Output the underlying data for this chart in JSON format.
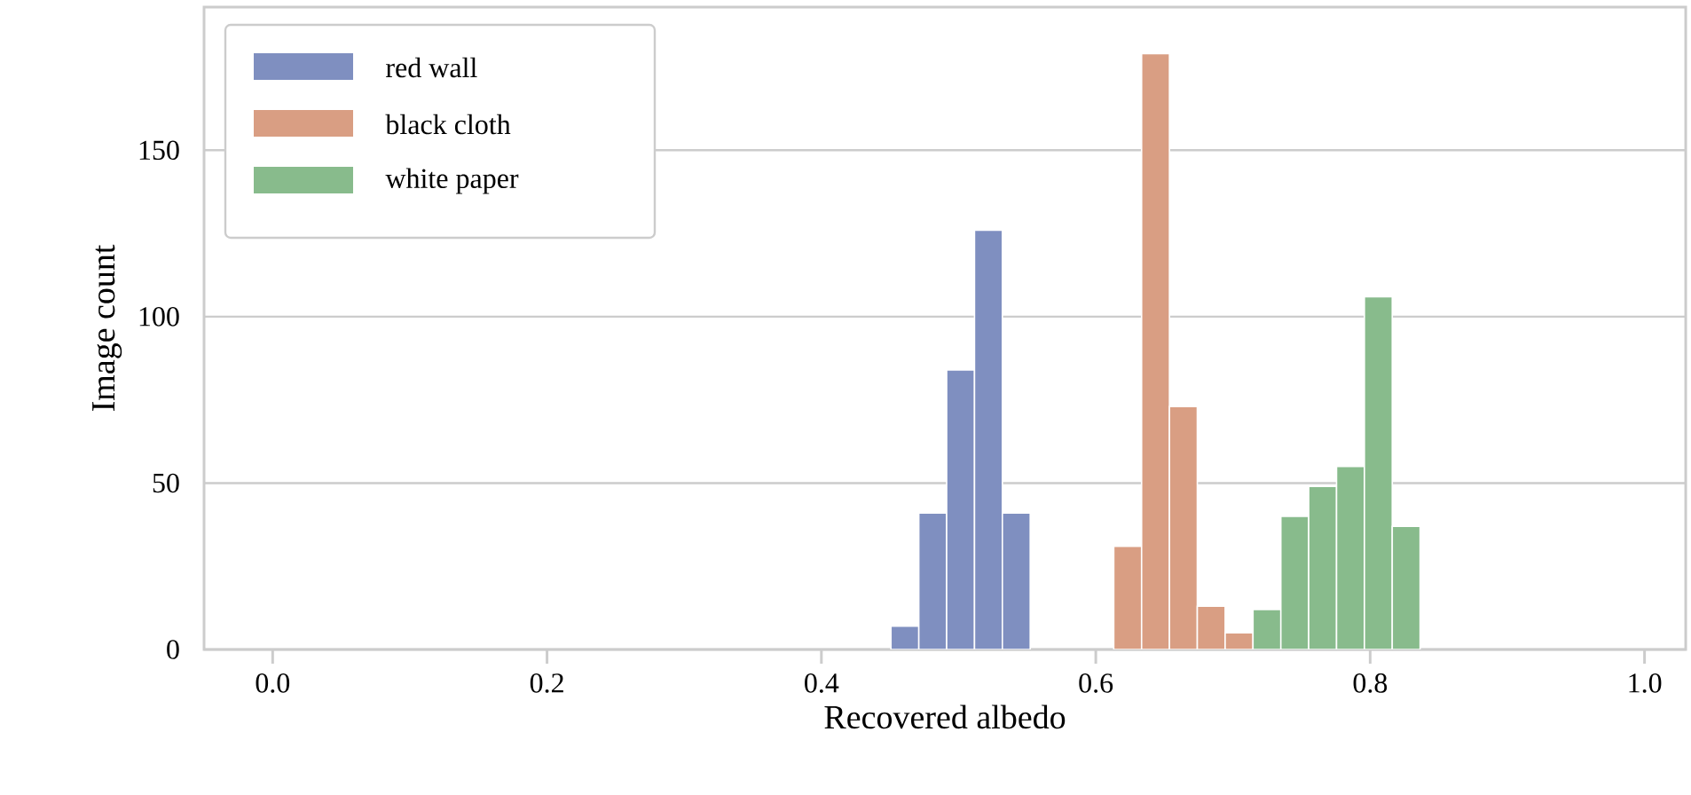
{
  "chart_data": {
    "type": "histogram",
    "xlabel": "Recovered albedo",
    "ylabel": "Image count",
    "bins": [
      0.4507,
      0.471,
      0.4913,
      0.5116,
      0.5319,
      0.5522,
      0.5725,
      0.5928,
      0.6131,
      0.6334,
      0.6537,
      0.674,
      0.6943,
      0.7146,
      0.7349,
      0.7552,
      0.7755,
      0.7958,
      0.8161,
      0.8364
    ],
    "series": [
      {
        "name": "red wall",
        "color": "#7f8fc0",
        "values": [
          7,
          41,
          84,
          126,
          41,
          null,
          null,
          null,
          null,
          null,
          null,
          null,
          null,
          null,
          null,
          null,
          null,
          null,
          null
        ]
      },
      {
        "name": "black cloth",
        "color": "#d99e83",
        "values": [
          null,
          null,
          null,
          null,
          null,
          null,
          null,
          null,
          31,
          179,
          73,
          13,
          5,
          null,
          null,
          null,
          null,
          null,
          null
        ]
      },
      {
        "name": "white paper",
        "color": "#88bb8c",
        "values": [
          null,
          null,
          null,
          null,
          null,
          null,
          null,
          null,
          null,
          null,
          null,
          null,
          null,
          12,
          40,
          49,
          55,
          106,
          37
        ]
      }
    ],
    "xlim": [
      -0.05,
      1.03
    ],
    "ylim": [
      0,
      193
    ],
    "xticks": [
      {
        "value": 0,
        "label": "0.0"
      },
      {
        "value": 0.2,
        "label": "0.2"
      },
      {
        "value": 0.4,
        "label": "0.4"
      },
      {
        "value": 0.6,
        "label": "0.6"
      },
      {
        "value": 0.8,
        "label": "0.8"
      },
      {
        "value": 1,
        "label": "1.0"
      }
    ],
    "yticks": [
      0,
      50,
      100,
      150
    ],
    "grid": "y",
    "legend": "top left"
  }
}
